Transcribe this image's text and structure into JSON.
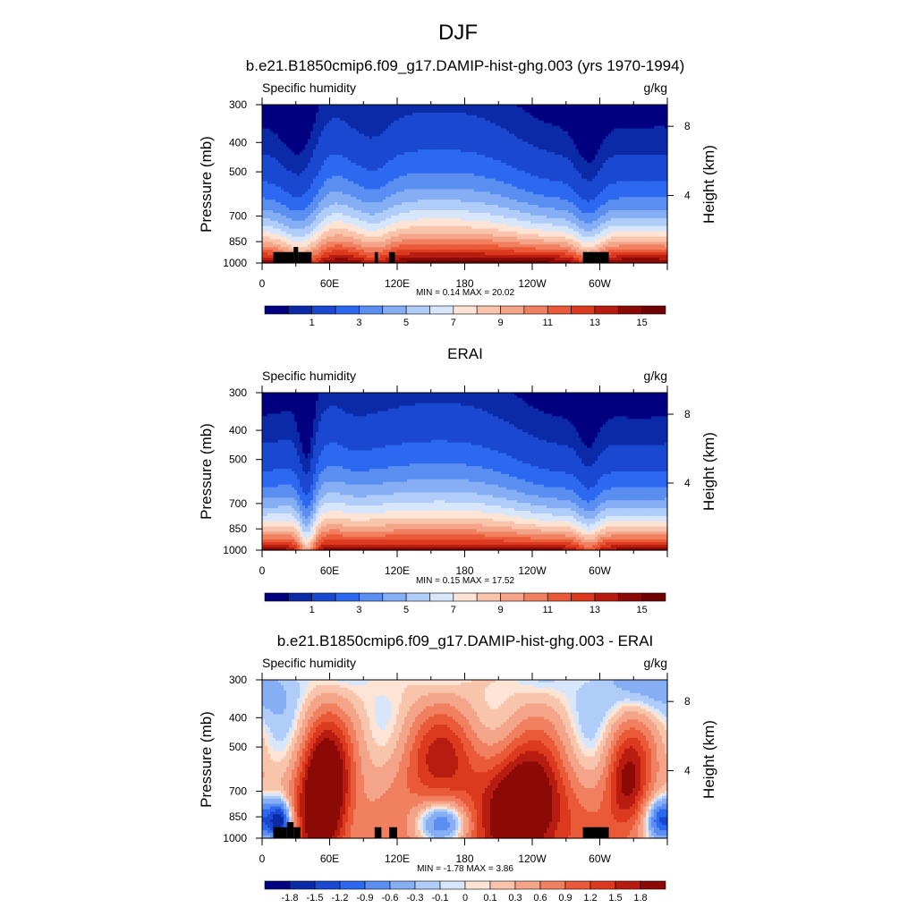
{
  "figure": {
    "title": "DJF"
  },
  "panels": [
    {
      "title": "b.e21.B1850cmip6.f09_g17.DAMIP-hist-ghg.003 (yrs 1970-1994)",
      "left_label": "Specific humidity",
      "right_label": "g/kg",
      "stats": "MIN =   0.14  MAX =  20.02"
    },
    {
      "title": "ERAI",
      "left_label": "Specific humidity",
      "right_label": "g/kg",
      "stats": "MIN =   0.15  MAX =  17.52"
    },
    {
      "title": "b.e21.B1850cmip6.f09_g17.DAMIP-hist-ghg.003 - ERAI",
      "left_label": "Specific humidity",
      "right_label": "g/kg",
      "stats": "MIN =  -1.78  MAX =   3.86"
    }
  ],
  "chart_data": [
    {
      "type": "heatmap",
      "title": "b.e21.B1850cmip6.f09_g17.DAMIP-hist-ghg.003 (yrs 1970-1994)",
      "xlabel": "",
      "ylabel": "Pressure (mb)",
      "y2label": "Height (km)",
      "x_ticks": [
        "0",
        "60E",
        "120E",
        "180",
        "120W",
        "60W"
      ],
      "x_tick_values": [
        0,
        60,
        120,
        180,
        240,
        300
      ],
      "xlim": [
        0,
        360
      ],
      "y_ticks": [
        300,
        400,
        500,
        700,
        850,
        1000
      ],
      "ylim": [
        1000,
        300
      ],
      "y_scale": "log",
      "y2_ticks": [
        8,
        4
      ],
      "legend_position": "bottom",
      "colorbar_labels": [
        "1",
        "3",
        "5",
        "7",
        "9",
        "11",
        "13",
        "15"
      ],
      "colorbar_levels": [
        0.5,
        1,
        2,
        3,
        4,
        5,
        6,
        7,
        8,
        9,
        10,
        11,
        12,
        13,
        14,
        15
      ],
      "colors": [
        "#000080",
        "#0a2aa8",
        "#1a48d0",
        "#2c68f0",
        "#5a8ef0",
        "#86aef4",
        "#b0ccf8",
        "#d8e6fc",
        "#fde4d4",
        "#f8c4ac",
        "#f4a488",
        "#f08060",
        "#ea5a38",
        "#dc3a1e",
        "#b81c10",
        "#8c0a06",
        "#6e0000"
      ],
      "min": 0.14,
      "max": 20.02,
      "surface_q": 15.5,
      "dry_anomalies": [
        {
          "lon": 35,
          "width": 14,
          "amp": 3.5
        },
        {
          "lon": 100,
          "width": 12,
          "amp": 2.0
        },
        {
          "lon": 290,
          "width": 10,
          "amp": 3.0
        }
      ],
      "terrain": [
        [
          10,
          28,
          920
        ],
        [
          28,
          32,
          885
        ],
        [
          32,
          44,
          920
        ],
        [
          100,
          103,
          920
        ],
        [
          113,
          118,
          920
        ],
        [
          285,
          308,
          920
        ]
      ]
    },
    {
      "type": "heatmap",
      "title": "ERAI",
      "xlabel": "",
      "ylabel": "Pressure (mb)",
      "y2label": "Height (km)",
      "x_ticks": [
        "0",
        "60E",
        "120E",
        "180",
        "120W",
        "60W"
      ],
      "x_tick_values": [
        0,
        60,
        120,
        180,
        240,
        300
      ],
      "xlim": [
        0,
        360
      ],
      "y_ticks": [
        300,
        400,
        500,
        700,
        850,
        1000
      ],
      "ylim": [
        1000,
        300
      ],
      "y_scale": "log",
      "y2_ticks": [
        8,
        4
      ],
      "legend_position": "bottom",
      "colorbar_labels": [
        "1",
        "3",
        "5",
        "7",
        "9",
        "11",
        "13",
        "15"
      ],
      "colorbar_levels": [
        0.5,
        1,
        2,
        3,
        4,
        5,
        6,
        7,
        8,
        9,
        10,
        11,
        12,
        13,
        14,
        15
      ],
      "colors": [
        "#000080",
        "#0a2aa8",
        "#1a48d0",
        "#2c68f0",
        "#5a8ef0",
        "#86aef4",
        "#b0ccf8",
        "#d8e6fc",
        "#fde4d4",
        "#f8c4ac",
        "#f4a488",
        "#f08060",
        "#ea5a38",
        "#dc3a1e",
        "#b81c10",
        "#8c0a06",
        "#6e0000"
      ],
      "min": 0.15,
      "max": 17.52,
      "surface_q": 14.5,
      "dry_anomalies": [
        {
          "lon": 40,
          "width": 6,
          "amp": 5.0
        },
        {
          "lon": 290,
          "width": 8,
          "amp": 2.5
        }
      ],
      "terrain": []
    },
    {
      "type": "heatmap",
      "title": "b.e21.B1850cmip6.f09_g17.DAMIP-hist-ghg.003 - ERAI",
      "xlabel": "",
      "ylabel": "Pressure (mb)",
      "y2label": "Height (km)",
      "x_ticks": [
        "0",
        "60E",
        "120E",
        "180",
        "120W",
        "60W"
      ],
      "x_tick_values": [
        0,
        60,
        120,
        180,
        240,
        300
      ],
      "xlim": [
        0,
        360
      ],
      "y_ticks": [
        300,
        400,
        500,
        700,
        850,
        1000
      ],
      "ylim": [
        1000,
        300
      ],
      "y_scale": "log",
      "y2_ticks": [
        8,
        4
      ],
      "legend_position": "bottom",
      "colorbar_labels": [
        "-1.8",
        "-1.5",
        "-1.2",
        "-0.9",
        "-0.6",
        "-0.3",
        "-0.1",
        "0",
        "0.1",
        "0.3",
        "0.6",
        "0.9",
        "1.2",
        "1.5",
        "1.8"
      ],
      "colorbar_levels": [
        -1.8,
        -1.5,
        -1.2,
        -0.9,
        -0.6,
        -0.3,
        -0.1,
        0,
        0.1,
        0.3,
        0.6,
        0.9,
        1.2,
        1.5,
        1.8
      ],
      "colors": [
        "#000080",
        "#0a2aa8",
        "#1a48d0",
        "#2c68f0",
        "#5a8ef0",
        "#86aef4",
        "#b0ccf8",
        "#d8e6fc",
        "#fde4d4",
        "#f8c4ac",
        "#f4a488",
        "#f08060",
        "#ea5a38",
        "#dc3a1e",
        "#b81c10",
        "#8c0a06"
      ],
      "min": -1.78,
      "max": 3.86,
      "features": [
        {
          "lon": 55,
          "p": 720,
          "slon": 16,
          "sp": 0.32,
          "amp": 2.6
        },
        {
          "lon": 160,
          "p": 560,
          "slon": 30,
          "sp": 0.25,
          "amp": 1.2
        },
        {
          "lon": 235,
          "p": 800,
          "slon": 25,
          "sp": 0.28,
          "amp": 2.4
        },
        {
          "lon": 325,
          "p": 650,
          "slon": 14,
          "sp": 0.25,
          "amp": 1.6
        },
        {
          "lon": 16,
          "p": 890,
          "slon": 8,
          "sp": 0.1,
          "amp": -2.4
        },
        {
          "lon": 160,
          "p": 880,
          "slon": 16,
          "sp": 0.09,
          "amp": -1.3
        },
        {
          "lon": 355,
          "p": 870,
          "slon": 10,
          "sp": 0.1,
          "amp": -1.6
        },
        {
          "lon": 345,
          "p": 320,
          "slon": 35,
          "sp": 0.15,
          "amp": -0.5
        }
      ],
      "terrain": [
        [
          10,
          22,
          920
        ],
        [
          22,
          28,
          885
        ],
        [
          28,
          34,
          920
        ],
        [
          100,
          106,
          920
        ],
        [
          113,
          120,
          920
        ],
        [
          285,
          308,
          920
        ]
      ]
    }
  ]
}
